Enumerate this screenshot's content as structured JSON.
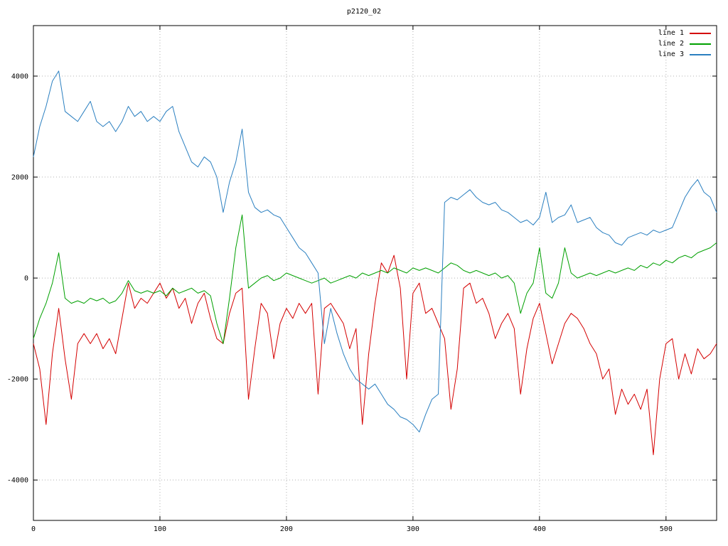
{
  "title": "p2120_02",
  "chart_data": {
    "type": "line",
    "title": "p2120_02",
    "xlabel": "",
    "ylabel": "",
    "xlim": [
      0,
      540
    ],
    "ylim": [
      -4800,
      5000
    ],
    "xticks": [
      0,
      100,
      200,
      300,
      400,
      500
    ],
    "yticks": [
      -4000,
      -2000,
      0,
      2000,
      4000
    ],
    "grid": true,
    "grid_style": "dotted",
    "legend_position": "top-right",
    "background": "#ffffff",
    "border_color": "#000000",
    "grid_color": "#b0b0b0",
    "x": [
      0,
      5,
      10,
      15,
      20,
      25,
      30,
      35,
      40,
      45,
      50,
      55,
      60,
      65,
      70,
      75,
      80,
      85,
      90,
      95,
      100,
      105,
      110,
      115,
      120,
      125,
      130,
      135,
      140,
      145,
      150,
      155,
      160,
      165,
      170,
      175,
      180,
      185,
      190,
      195,
      200,
      205,
      210,
      215,
      220,
      225,
      230,
      235,
      240,
      245,
      250,
      255,
      260,
      265,
      270,
      275,
      280,
      285,
      290,
      295,
      300,
      305,
      310,
      315,
      320,
      325,
      330,
      335,
      340,
      345,
      350,
      355,
      360,
      365,
      370,
      375,
      380,
      385,
      390,
      395,
      400,
      405,
      410,
      415,
      420,
      425,
      430,
      435,
      440,
      445,
      450,
      455,
      460,
      465,
      470,
      475,
      480,
      485,
      490,
      495,
      500,
      505,
      510,
      515,
      520,
      525,
      530,
      535,
      540
    ],
    "series": [
      {
        "name": "line 1",
        "color": "#d40000",
        "values": [
          -1300,
          -1800,
          -2900,
          -1500,
          -600,
          -1600,
          -2400,
          -1300,
          -1100,
          -1300,
          -1100,
          -1400,
          -1200,
          -1500,
          -800,
          -100,
          -600,
          -400,
          -500,
          -300,
          -100,
          -400,
          -200,
          -600,
          -400,
          -900,
          -500,
          -300,
          -800,
          -1200,
          -1300,
          -700,
          -300,
          -200,
          -2400,
          -1400,
          -500,
          -700,
          -1600,
          -900,
          -600,
          -800,
          -500,
          -700,
          -500,
          -2300,
          -600,
          -500,
          -700,
          -900,
          -1400,
          -1000,
          -2900,
          -1500,
          -500,
          300,
          100,
          450,
          -200,
          -2000,
          -300,
          -100,
          -700,
          -600,
          -900,
          -1200,
          -2600,
          -1800,
          -200,
          -100,
          -500,
          -400,
          -700,
          -1200,
          -900,
          -700,
          -1000,
          -2300,
          -1400,
          -800,
          -500,
          -1100,
          -1700,
          -1300,
          -900,
          -700,
          -800,
          -1000,
          -1300,
          -1500,
          -2000,
          -1800,
          -2700,
          -2200,
          -2500,
          -2300,
          -2600,
          -2200,
          -3500,
          -2000,
          -1300,
          -1200,
          -2000,
          -1500,
          -1900,
          -1400,
          -1600,
          -1500,
          -1300
        ]
      },
      {
        "name": "line 2",
        "color": "#00a000",
        "values": [
          -1200,
          -800,
          -500,
          -100,
          500,
          -400,
          -500,
          -450,
          -500,
          -400,
          -450,
          -400,
          -500,
          -450,
          -300,
          -50,
          -250,
          -300,
          -250,
          -300,
          -250,
          -350,
          -200,
          -300,
          -250,
          -200,
          -300,
          -250,
          -350,
          -900,
          -1300,
          -400,
          600,
          1250,
          -200,
          -100,
          0,
          50,
          -50,
          0,
          100,
          50,
          0,
          -50,
          -100,
          -50,
          0,
          -100,
          -50,
          0,
          50,
          0,
          100,
          50,
          100,
          150,
          100,
          200,
          150,
          100,
          200,
          150,
          200,
          150,
          100,
          200,
          300,
          250,
          150,
          100,
          150,
          100,
          50,
          100,
          0,
          50,
          -100,
          -700,
          -300,
          -100,
          600,
          -300,
          -400,
          -100,
          600,
          100,
          0,
          50,
          100,
          50,
          100,
          150,
          100,
          150,
          200,
          150,
          250,
          200,
          300,
          250,
          350,
          300,
          400,
          450,
          400,
          500,
          550,
          600,
          700
        ]
      },
      {
        "name": "line 3",
        "color": "#2a7fc0",
        "values": [
          2400,
          3000,
          3400,
          3900,
          4100,
          3300,
          3200,
          3100,
          3300,
          3500,
          3100,
          3000,
          3100,
          2900,
          3100,
          3400,
          3200,
          3300,
          3100,
          3200,
          3100,
          3300,
          3400,
          2900,
          2600,
          2300,
          2200,
          2400,
          2300,
          2000,
          1300,
          1900,
          2300,
          2950,
          1700,
          1400,
          1300,
          1350,
          1250,
          1200,
          1000,
          800,
          600,
          500,
          300,
          100,
          -1300,
          -600,
          -1100,
          -1500,
          -1800,
          -2000,
          -2100,
          -2200,
          -2100,
          -2300,
          -2500,
          -2600,
          -2750,
          -2800,
          -2900,
          -3050,
          -2700,
          -2400,
          -2300,
          1500,
          1600,
          1550,
          1650,
          1750,
          1600,
          1500,
          1450,
          1500,
          1350,
          1300,
          1200,
          1100,
          1150,
          1050,
          1200,
          1700,
          1100,
          1200,
          1250,
          1450,
          1100,
          1150,
          1200,
          1000,
          900,
          850,
          700,
          650,
          800,
          850,
          900,
          850,
          950,
          900,
          950,
          1000,
          1300,
          1600,
          1800,
          1950,
          1700,
          1600,
          1300
        ]
      }
    ]
  }
}
